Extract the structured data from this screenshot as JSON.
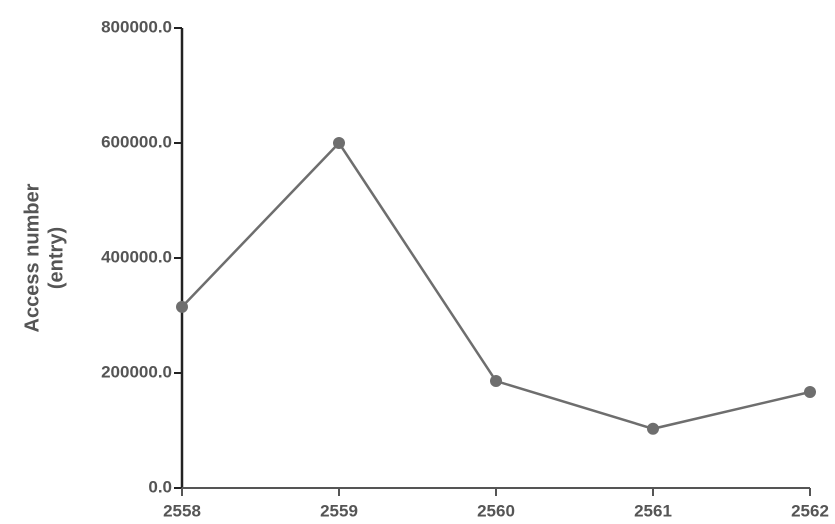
{
  "chart_data": {
    "type": "line",
    "ylabel": [
      "Access number",
      "(entry)"
    ],
    "x": [
      2558,
      2559,
      2560,
      2561,
      2562
    ],
    "series": [
      {
        "color": "#6e6e6e",
        "values": [
          315000,
          600000,
          186000,
          103000,
          167000
        ]
      }
    ],
    "xlim": [
      2558,
      2562
    ],
    "xticks": [
      2558,
      2559,
      2560,
      2561,
      2562
    ],
    "ylim": [
      0,
      800000
    ],
    "yticks": [
      {
        "value": 0,
        "label": "0.0"
      },
      {
        "value": 200000,
        "label": "200000.0"
      },
      {
        "value": 400000,
        "label": "400000.0"
      },
      {
        "value": 600000,
        "label": "600000.0"
      },
      {
        "value": 800000,
        "label": "800000.0"
      }
    ],
    "grid": false
  }
}
